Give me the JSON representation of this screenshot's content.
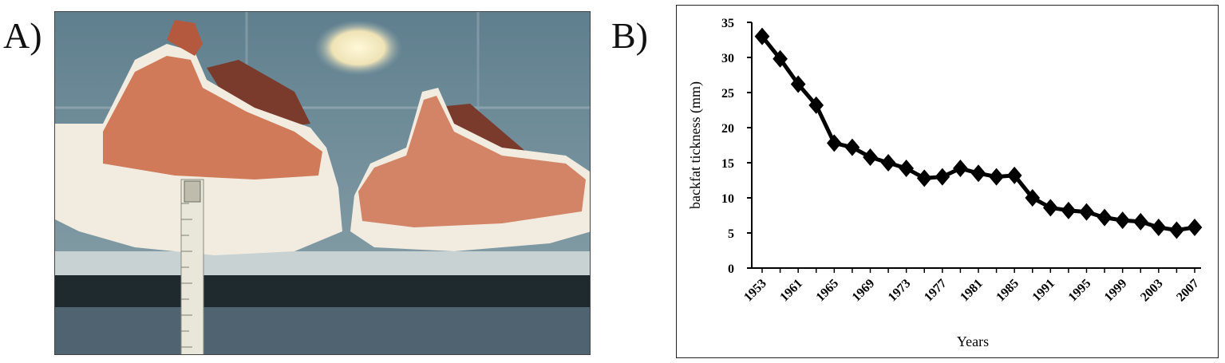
{
  "panels": {
    "a_label": "A)",
    "b_label": "B)"
  },
  "photo": {
    "subject": "cross-sections of pork loin chops with ruler"
  },
  "chart_data": {
    "type": "line",
    "title": "",
    "xlabel": "Years",
    "ylabel": "backfat tickness (mm)",
    "ylim": [
      0,
      35
    ],
    "yticks": [
      0,
      5,
      10,
      15,
      20,
      25,
      30,
      35
    ],
    "xticklabels": [
      "1953",
      "1961",
      "1965",
      "1969",
      "1973",
      "1977",
      "1981",
      "1985",
      "1991",
      "1995",
      "1999",
      "2003",
      "2007"
    ],
    "grid": false,
    "legend": "none",
    "marker": "diamond",
    "line_color": "#000000",
    "series": [
      {
        "values": [
          33,
          29.8,
          26.2,
          23.2,
          17.8,
          17.2,
          15.8,
          15,
          14.2,
          12.8,
          13,
          14.2,
          13.5,
          13,
          13.2,
          10,
          8.6,
          8.2,
          8,
          7.2,
          6.8,
          6.6,
          5.8,
          5.4,
          5.8
        ]
      }
    ]
  }
}
